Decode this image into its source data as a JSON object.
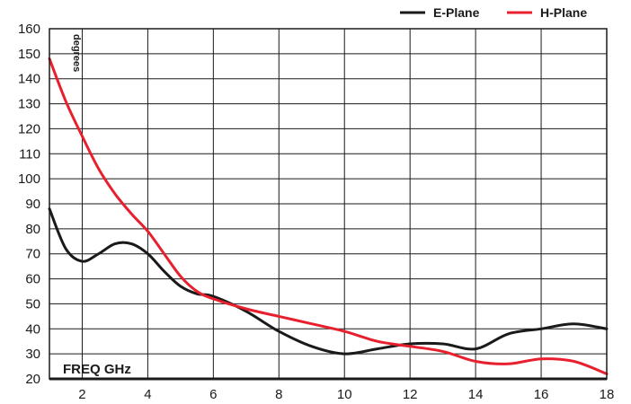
{
  "chart_data": {
    "type": "line",
    "ylabel": "degrees",
    "xlabel": "FREQ GHz",
    "xlim": [
      1,
      18
    ],
    "ylim": [
      20,
      160
    ],
    "xticks": [
      2,
      4,
      6,
      8,
      10,
      12,
      14,
      16,
      18
    ],
    "yticks": [
      20,
      30,
      40,
      50,
      60,
      70,
      80,
      90,
      100,
      110,
      120,
      130,
      140,
      150,
      160
    ],
    "grid": true,
    "legend": "top-right",
    "series": [
      {
        "name": "E-Plane",
        "color": "#1a1a1a",
        "x": [
          1,
          1.5,
          2,
          2.5,
          3,
          3.5,
          4,
          4.5,
          5,
          5.5,
          6,
          7,
          8,
          9,
          10,
          11,
          12,
          13,
          14,
          15,
          16,
          17,
          18
        ],
        "y": [
          88,
          72,
          67,
          70,
          74,
          74,
          70,
          63,
          57,
          54,
          53,
          47,
          39,
          33,
          30,
          32,
          34,
          34,
          32,
          38,
          40,
          42,
          40
        ]
      },
      {
        "name": "H-Plane",
        "color": "#e8202e",
        "x": [
          1,
          1.5,
          2,
          2.5,
          3,
          3.5,
          4,
          4.5,
          5,
          5.5,
          6,
          7,
          8,
          9,
          10,
          11,
          12,
          13,
          14,
          15,
          16,
          17,
          18
        ],
        "y": [
          148,
          131,
          117,
          104,
          94,
          86,
          79,
          70,
          61,
          55,
          52,
          48,
          45,
          42,
          39,
          35,
          33,
          31,
          27,
          26,
          28,
          27,
          22
        ]
      }
    ]
  }
}
